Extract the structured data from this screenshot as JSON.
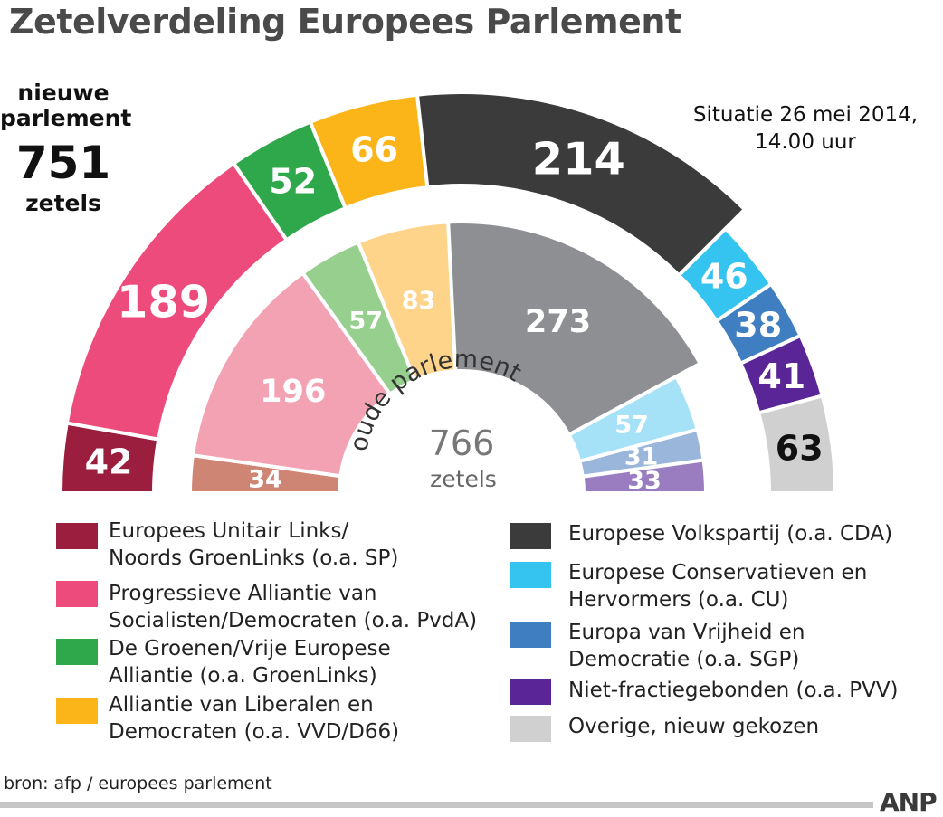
{
  "title": "Zetelverdeling Europees Parlement",
  "new_parliament": {
    "label_line1": "nieuwe",
    "label_line2": "parlement",
    "total": "751",
    "unit": "zetels"
  },
  "situation": {
    "line1": "Situatie 26 mei 2014,",
    "line2": "14.00 uur"
  },
  "old_parliament": {
    "label": "oude parlement",
    "total": "766",
    "unit": "zetels"
  },
  "chart_data": {
    "type": "pie",
    "subtype": "double-semicircle",
    "title": "Zetelverdeling Europees Parlement",
    "series": [
      {
        "name": "nieuwe parlement",
        "total": 751,
        "slices": [
          {
            "label": "42",
            "value": 42,
            "color": "#9c1e3e",
            "text_color": "#ffffff"
          },
          {
            "label": "189",
            "value": 189,
            "color": "#ec4b7b",
            "text_color": "#ffffff"
          },
          {
            "label": "52",
            "value": 52,
            "color": "#2ea84a",
            "text_color": "#ffffff"
          },
          {
            "label": "66",
            "value": 66,
            "color": "#fbb519",
            "text_color": "#ffffff"
          },
          {
            "label": "214",
            "value": 214,
            "color": "#3b3b3b",
            "text_color": "#ffffff"
          },
          {
            "label": "46",
            "value": 46,
            "color": "#35c3ef",
            "text_color": "#ffffff"
          },
          {
            "label": "38",
            "value": 38,
            "color": "#3f7fc1",
            "text_color": "#ffffff"
          },
          {
            "label": "41",
            "value": 41,
            "color": "#5a2596",
            "text_color": "#ffffff"
          },
          {
            "label": "63",
            "value": 63,
            "color": "#d0d0d0",
            "text_color": "#111111"
          }
        ]
      },
      {
        "name": "oude parlement",
        "total": 766,
        "slices": [
          {
            "label": "34",
            "value": 34,
            "color": "#cf8574",
            "text_color": "#ffffff"
          },
          {
            "label": "196",
            "value": 196,
            "color": "#f2a2b2",
            "text_color": "#ffffff"
          },
          {
            "label": "57",
            "value": 57,
            "color": "#97cf8e",
            "text_color": "#ffffff"
          },
          {
            "label": "83",
            "value": 83,
            "color": "#fdd489",
            "text_color": "#ffffff"
          },
          {
            "label": "273",
            "value": 273,
            "color": "#8e8f93",
            "text_color": "#ffffff"
          },
          {
            "label": "57",
            "value": 57,
            "color": "#a6e2f7",
            "text_color": "#ffffff"
          },
          {
            "label": "31",
            "value": 31,
            "color": "#9ab6db",
            "text_color": "#ffffff"
          },
          {
            "label": "33",
            "value": 33,
            "color": "#9a7cc0",
            "text_color": "#ffffff"
          }
        ]
      }
    ],
    "legend": [
      {
        "line1": "Europees Unitair Links/",
        "line2": "Noords GroenLinks (o.a. SP)",
        "color": "#9c1e3e"
      },
      {
        "line1": "Progressieve Alliantie van",
        "line2": "Socialisten/Democraten (o.a. PvdA)",
        "color": "#ec4b7b"
      },
      {
        "line1": "De Groenen/Vrije Europese",
        "line2": "Alliantie (o.a. GroenLinks)",
        "color": "#2ea84a"
      },
      {
        "line1": "Alliantie van Liberalen en",
        "line2": "Democraten (o.a. VVD/D66)",
        "color": "#fbb519"
      },
      {
        "line1": "Europese Volkspartij (o.a. CDA)",
        "line2": "",
        "color": "#3b3b3b"
      },
      {
        "line1": "Europese Conservatieven en",
        "line2": "Hervormers (o.a. CU)",
        "color": "#35c3ef"
      },
      {
        "line1": "Europa van Vrijheid en",
        "line2": "Democratie (o.a. SGP)",
        "color": "#3f7fc1"
      },
      {
        "line1": "Niet-fractiegebonden (o.a. PVV)",
        "line2": "",
        "color": "#5a2596"
      },
      {
        "line1": "Overige, nieuw gekozen",
        "line2": "",
        "color": "#d0d0d0"
      }
    ]
  },
  "source": "bron: afp / europees parlement",
  "brand": "ANP"
}
